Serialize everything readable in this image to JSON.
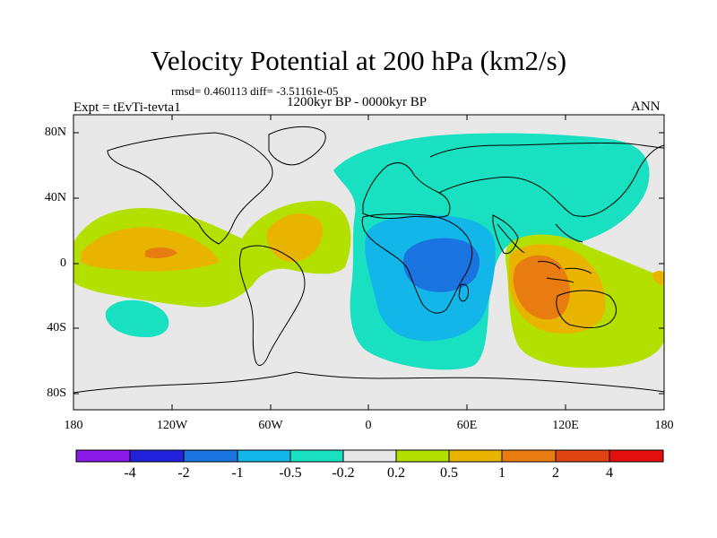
{
  "title": "Velocity Potential at 200 hPa (km2/s)",
  "stats": "rmsd= 0.460113 diff= -3.51161e-05",
  "period": "1200kyr BP - 0000kyr BP",
  "experiment": "Expt = tEvTi-tevta1",
  "season": "ANN",
  "axes": {
    "y_labels": [
      "80N",
      "40N",
      "0",
      "40S",
      "80S"
    ],
    "x_labels": [
      "180",
      "120W",
      "60W",
      "0",
      "60E",
      "120E",
      "180"
    ]
  },
  "colorbar": {
    "labels": [
      "-4",
      "-2",
      "-1",
      "-0.5",
      "-0.2",
      "0.2",
      "0.5",
      "1",
      "2",
      "4"
    ],
    "colors": [
      "#8a1ae8",
      "#2222dd",
      "#1a74df",
      "#12b6e8",
      "#18e0c0",
      "#e8e8e8",
      "#b4e000",
      "#e8b400",
      "#e87c10",
      "#e04412",
      "#e41010"
    ]
  },
  "colors": {
    "background": "#e8e8e8",
    "coast": "#000000"
  }
}
